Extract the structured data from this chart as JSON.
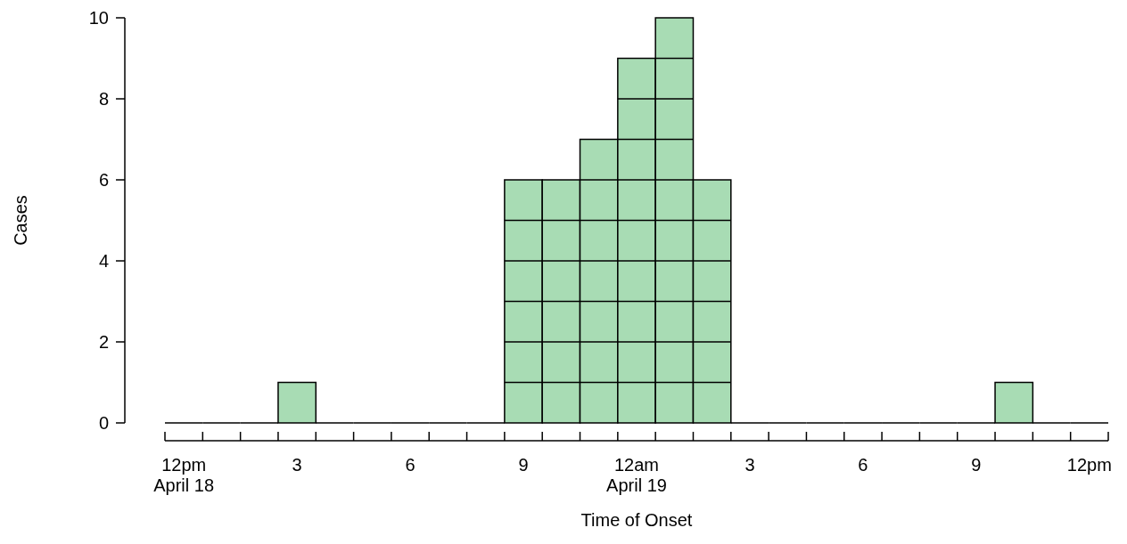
{
  "chart_data": {
    "type": "bar",
    "xlabel": "Time of Onset",
    "ylabel": "Cases",
    "categories": [
      "12pm\nApril 18",
      null,
      null,
      "3",
      null,
      null,
      "6",
      null,
      null,
      "9",
      null,
      null,
      "12am\nApril 19",
      null,
      null,
      "3",
      null,
      null,
      "6",
      null,
      null,
      "9",
      null,
      null,
      "12pm"
    ],
    "values": [
      0,
      0,
      0,
      1,
      0,
      0,
      0,
      0,
      0,
      6,
      6,
      7,
      9,
      10,
      6,
      0,
      0,
      0,
      0,
      0,
      0,
      0,
      1,
      0,
      0
    ],
    "color": "#a8dcb4",
    "ylim": [
      0,
      10
    ],
    "yticks": [
      0,
      2,
      4,
      6,
      8,
      10
    ],
    "grid": false
  }
}
